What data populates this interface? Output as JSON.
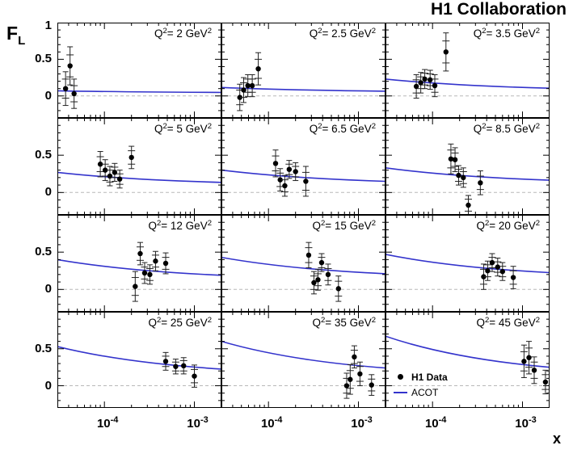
{
  "header": {
    "title": "H1 Collaboration"
  },
  "axes": {
    "y_label": {
      "base": "F",
      "sub": "L"
    },
    "x_label": "x",
    "x_scale": "log",
    "x_range": [
      3e-05,
      0.002
    ],
    "y_range": [
      -0.3,
      1.0
    ],
    "x_major_ticks": [
      0.0001,
      0.001
    ],
    "x_tick_labels": [
      {
        "base": "10",
        "exp": "-4"
      },
      {
        "base": "10",
        "exp": "-3"
      }
    ],
    "y_major_ticks": [
      0,
      0.5,
      1
    ],
    "y_minor_step": 0.1,
    "row1_y_labels": [
      {
        "text": "1",
        "value": 1
      },
      {
        "text": "0.5",
        "value": 0.5
      },
      {
        "text": "0",
        "value": 0
      }
    ],
    "other_rows_y_labels": [
      {
        "text": "0.5",
        "value": 0.5
      },
      {
        "text": "0",
        "value": 0
      }
    ],
    "grid": "off",
    "zero_line": "dashed"
  },
  "legend": {
    "position": "bottom-right-panel",
    "items": [
      {
        "label": "H1 Data",
        "marker": "circle",
        "color": "#000000"
      },
      {
        "label": "ACOT",
        "marker": "line",
        "color": "#3333cc"
      }
    ]
  },
  "colors": {
    "curve": "#3333cc",
    "marker": "#000000",
    "error_bar": "#222222",
    "zero_line": "#b8b8b8",
    "frame": "#000000",
    "background": "#ffffff"
  },
  "chart_data": {
    "type": "scatter",
    "title": "H1 Collaboration",
    "xlabel": "x",
    "ylabel": "FL",
    "x_scale": "log",
    "xlim": [
      3e-05,
      0.002
    ],
    "ylim": [
      -0.3,
      1.0
    ],
    "panel_label_prefix": "Q",
    "panel_label_unit": "GeV",
    "panels": [
      {
        "q2": "2",
        "curve": {
          "y_left": 0.07,
          "y_right": 0.048
        },
        "points": [
          [
            3.7e-05,
            0.1,
            0.23,
            0.13
          ],
          [
            4.15e-05,
            0.41,
            0.26,
            0.15
          ],
          [
            4.6e-05,
            0.03,
            0.2,
            0.11
          ]
        ]
      },
      {
        "q2": "2.5",
        "curve": {
          "y_left": 0.115,
          "y_right": 0.065
        },
        "points": [
          [
            4.8e-05,
            -0.02,
            0.18,
            0.1
          ],
          [
            5.3e-05,
            0.08,
            0.17,
            0.1
          ],
          [
            5.9e-05,
            0.14,
            0.15,
            0.09
          ],
          [
            6.6e-05,
            0.14,
            0.15,
            0.09
          ],
          [
            7.7e-05,
            0.37,
            0.22,
            0.13
          ]
        ]
      },
      {
        "q2": "3.5",
        "curve": {
          "y_left": 0.23,
          "y_right": 0.105
        },
        "points": [
          [
            6.6e-05,
            0.13,
            0.16,
            0.09
          ],
          [
            7.4e-05,
            0.18,
            0.14,
            0.08
          ],
          [
            8.2e-05,
            0.23,
            0.13,
            0.08
          ],
          [
            9.4e-05,
            0.22,
            0.13,
            0.08
          ],
          [
            0.000106,
            0.14,
            0.15,
            0.09
          ],
          [
            0.000141,
            0.6,
            0.26,
            0.15
          ]
        ]
      },
      {
        "q2": "5",
        "curve": {
          "y_left": 0.27,
          "y_right": 0.135
        },
        "points": [
          [
            9e-05,
            0.38,
            0.17,
            0.1
          ],
          [
            0.000102,
            0.3,
            0.14,
            0.08
          ],
          [
            0.000115,
            0.22,
            0.13,
            0.08
          ],
          [
            0.00013,
            0.27,
            0.12,
            0.07
          ],
          [
            0.000148,
            0.18,
            0.12,
            0.07
          ],
          [
            0.0002,
            0.47,
            0.15,
            0.09
          ]
        ]
      },
      {
        "q2": "6.5",
        "curve": {
          "y_left": 0.3,
          "y_right": 0.15
        },
        "points": [
          [
            0.00012,
            0.39,
            0.18,
            0.1
          ],
          [
            0.000135,
            0.17,
            0.15,
            0.09
          ],
          [
            0.000152,
            0.09,
            0.14,
            0.08
          ],
          [
            0.00017,
            0.31,
            0.12,
            0.07
          ],
          [
            0.0002,
            0.28,
            0.12,
            0.07
          ],
          [
            0.00026,
            0.15,
            0.2,
            0.12
          ]
        ]
      },
      {
        "q2": "8.5",
        "curve": {
          "y_left": 0.33,
          "y_right": 0.165
        },
        "points": [
          [
            0.00016,
            0.45,
            0.2,
            0.12
          ],
          [
            0.000178,
            0.44,
            0.16,
            0.09
          ],
          [
            0.000195,
            0.23,
            0.13,
            0.08
          ],
          [
            0.00022,
            0.2,
            0.13,
            0.08
          ],
          [
            0.00025,
            -0.17,
            0.13,
            0.08
          ],
          [
            0.00034,
            0.13,
            0.16,
            0.09
          ]
        ]
      },
      {
        "q2": "12",
        "curve": {
          "y_left": 0.4,
          "y_right": 0.19
        },
        "points": [
          [
            0.00022,
            0.04,
            0.2,
            0.12
          ],
          [
            0.00025,
            0.48,
            0.15,
            0.09
          ],
          [
            0.00028,
            0.22,
            0.14,
            0.08
          ],
          [
            0.00032,
            0.2,
            0.13,
            0.08
          ],
          [
            0.00037,
            0.38,
            0.13,
            0.08
          ],
          [
            0.00048,
            0.35,
            0.14,
            0.08
          ]
        ]
      },
      {
        "q2": "15",
        "curve": {
          "y_left": 0.43,
          "y_right": 0.21
        },
        "points": [
          [
            0.00028,
            0.46,
            0.17,
            0.1
          ],
          [
            0.00032,
            0.09,
            0.15,
            0.09
          ],
          [
            0.000355,
            0.13,
            0.14,
            0.08
          ],
          [
            0.00039,
            0.36,
            0.12,
            0.07
          ],
          [
            0.00046,
            0.2,
            0.14,
            0.08
          ],
          [
            0.0006,
            0.01,
            0.17,
            0.1
          ]
        ]
      },
      {
        "q2": "20",
        "curve": {
          "y_left": 0.47,
          "y_right": 0.225
        },
        "points": [
          [
            0.00037,
            0.17,
            0.17,
            0.1
          ],
          [
            0.00041,
            0.25,
            0.13,
            0.08
          ],
          [
            0.00046,
            0.36,
            0.12,
            0.07
          ],
          [
            0.00053,
            0.3,
            0.12,
            0.07
          ],
          [
            0.0006,
            0.24,
            0.12,
            0.07
          ],
          [
            0.00079,
            0.16,
            0.15,
            0.09
          ]
        ]
      },
      {
        "q2": "25",
        "curve": {
          "y_left": 0.53,
          "y_right": 0.225
        },
        "points": [
          [
            0.00048,
            0.33,
            0.12,
            0.07
          ],
          [
            0.00062,
            0.26,
            0.1,
            0.06
          ],
          [
            0.00076,
            0.27,
            0.11,
            0.07
          ],
          [
            0.001,
            0.13,
            0.15,
            0.09
          ]
        ]
      },
      {
        "q2": "35",
        "curve": {
          "y_left": 0.6,
          "y_right": 0.24
        },
        "points": [
          [
            0.00074,
            0.0,
            0.17,
            0.1
          ],
          [
            0.00081,
            0.085,
            0.2,
            0.12
          ],
          [
            0.0009,
            0.39,
            0.15,
            0.09
          ],
          [
            0.00104,
            0.16,
            0.16,
            0.1
          ],
          [
            0.0014,
            0.01,
            0.14,
            0.08
          ]
        ]
      },
      {
        "q2": "45",
        "curve": {
          "y_left": 0.67,
          "y_right": 0.25
        },
        "points": [
          [
            0.00104,
            0.33,
            0.22,
            0.13
          ],
          [
            0.00118,
            0.38,
            0.22,
            0.13
          ],
          [
            0.00135,
            0.21,
            0.18,
            0.11
          ],
          [
            0.0018,
            0.05,
            0.16,
            0.1
          ]
        ]
      }
    ]
  }
}
